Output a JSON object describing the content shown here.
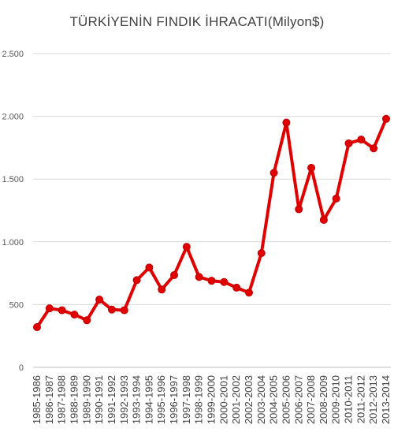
{
  "chart_data": {
    "type": "line",
    "title": "TÜRKİYENİN FINDIK İHRACATI(Milyon$)",
    "xlabel": "",
    "ylabel": "",
    "ylim": [
      0,
      2500
    ],
    "y_ticks": [
      0,
      500,
      1000,
      1500,
      2000,
      2500
    ],
    "y_tick_labels": [
      "0",
      "500",
      "1.000",
      "1.500",
      "2.000",
      "2.500"
    ],
    "grid": true,
    "legend": "none",
    "categories": [
      "1985-1986",
      "1986-1987",
      "1987-1988",
      "1988-1989",
      "1989-1990",
      "1990-1991",
      "1991-1992",
      "1992-1993",
      "1993-1994",
      "1994-1995",
      "1995-1996",
      "1996-1997",
      "1997-1998",
      "1998-1999",
      "1999-2000",
      "2000-2001",
      "2001-2002",
      "2002-2003",
      "2003-2004",
      "2004-2005",
      "2005-2006",
      "2006-2007",
      "2007-2008",
      "2008-2009",
      "2009-2010",
      "2010-2011",
      "2011-2012",
      "2012-2013",
      "2013-2014"
    ],
    "series": [
      {
        "color": "#e00000",
        "values": [
          320,
          470,
          455,
          420,
          375,
          540,
          460,
          455,
          695,
          795,
          620,
          735,
          960,
          720,
          690,
          680,
          635,
          595,
          910,
          1550,
          1950,
          1260,
          1590,
          1175,
          1345,
          1785,
          1815,
          1745,
          1980
        ]
      }
    ]
  }
}
